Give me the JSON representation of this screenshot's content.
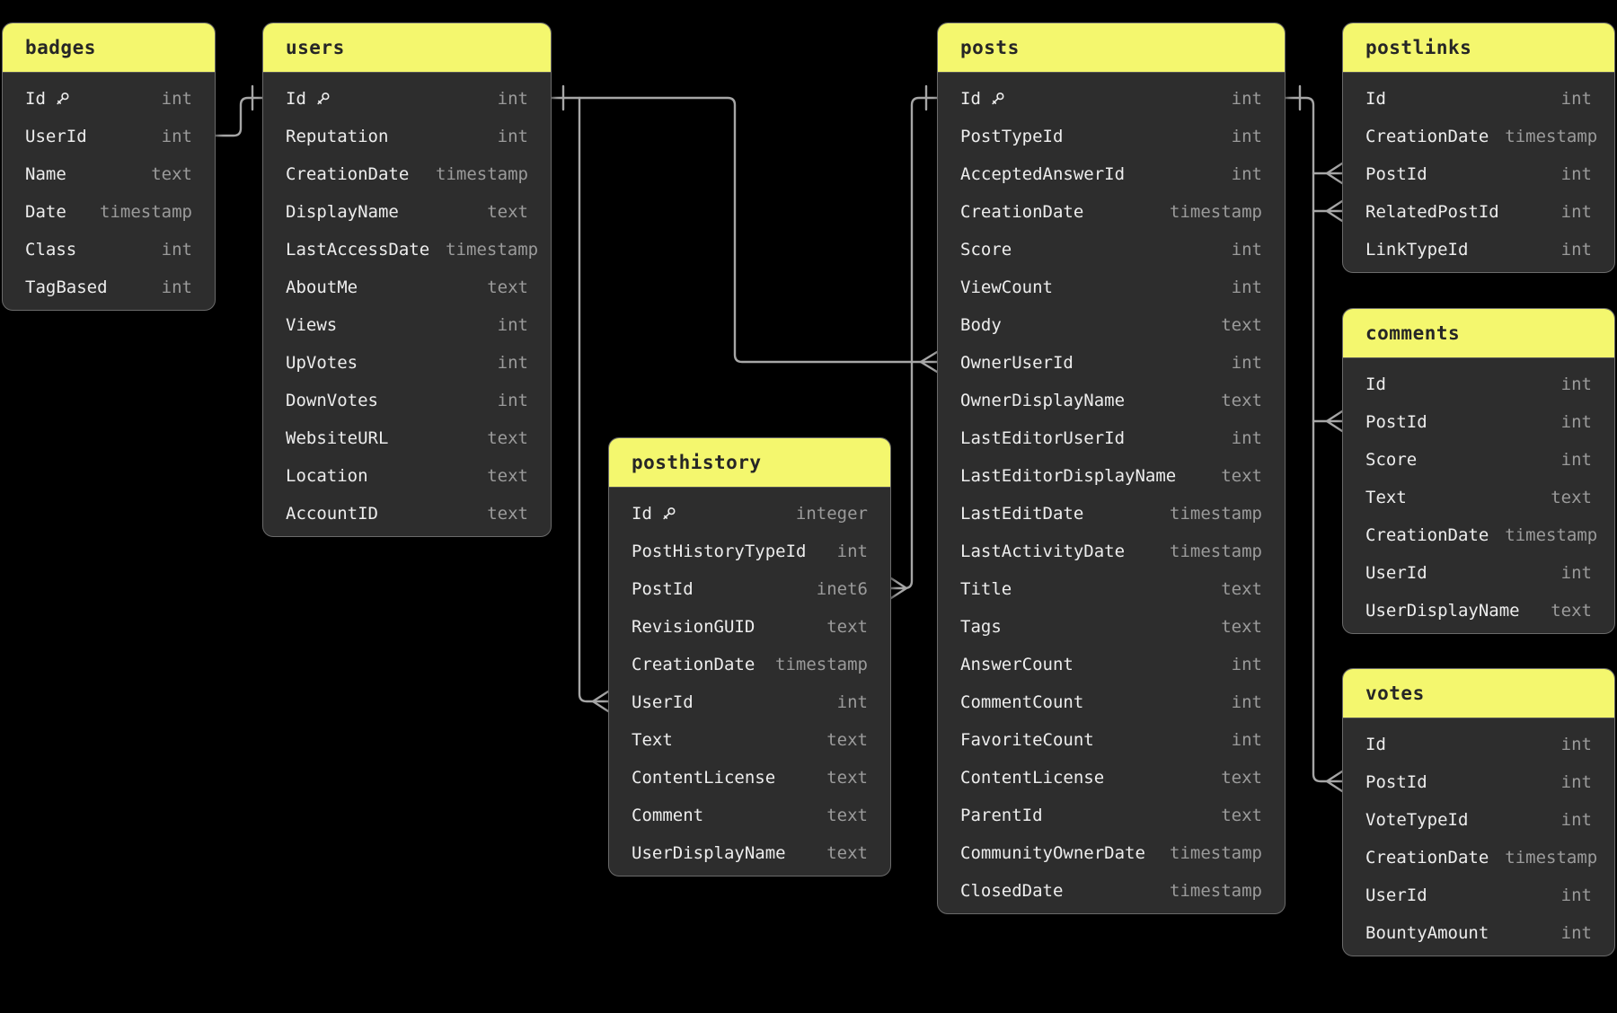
{
  "diagram": {
    "background_color": "#000000",
    "table_body_color": "#2d2d2d",
    "header_color": "#f4f76e",
    "header_text_color": "#262626",
    "field_text_color": "#ededed",
    "type_text_color": "#9b9b9b",
    "line_color": "#a6a6a6",
    "key_icon": "key-icon",
    "tables": [
      {
        "name": "badges",
        "fields": [
          {
            "name": "Id",
            "type": "int",
            "key": true
          },
          {
            "name": "UserId",
            "type": "int",
            "key": false
          },
          {
            "name": "Name",
            "type": "text",
            "key": false
          },
          {
            "name": "Date",
            "type": "timestamp",
            "key": false
          },
          {
            "name": "Class",
            "type": "int",
            "key": false
          },
          {
            "name": "TagBased",
            "type": "int",
            "key": false
          }
        ]
      },
      {
        "name": "users",
        "fields": [
          {
            "name": "Id",
            "type": "int",
            "key": true
          },
          {
            "name": "Reputation",
            "type": "int",
            "key": false
          },
          {
            "name": "CreationDate",
            "type": "timestamp",
            "key": false
          },
          {
            "name": "DisplayName",
            "type": "text",
            "key": false
          },
          {
            "name": "LastAccessDate",
            "type": "timestamp",
            "key": false
          },
          {
            "name": "AboutMe",
            "type": "text",
            "key": false
          },
          {
            "name": "Views",
            "type": "int",
            "key": false
          },
          {
            "name": "UpVotes",
            "type": "int",
            "key": false
          },
          {
            "name": "DownVotes",
            "type": "int",
            "key": false
          },
          {
            "name": "WebsiteURL",
            "type": "text",
            "key": false
          },
          {
            "name": "Location",
            "type": "text",
            "key": false
          },
          {
            "name": "AccountID",
            "type": "text",
            "key": false
          }
        ]
      },
      {
        "name": "posthistory",
        "fields": [
          {
            "name": "Id",
            "type": "integer",
            "key": true
          },
          {
            "name": "PostHistoryTypeId",
            "type": "int",
            "key": false
          },
          {
            "name": "PostId",
            "type": "inet6",
            "key": false
          },
          {
            "name": "RevisionGUID",
            "type": "text",
            "key": false
          },
          {
            "name": "CreationDate",
            "type": "timestamp",
            "key": false
          },
          {
            "name": "UserId",
            "type": "int",
            "key": false
          },
          {
            "name": "Text",
            "type": "text",
            "key": false
          },
          {
            "name": "ContentLicense",
            "type": "text",
            "key": false
          },
          {
            "name": "Comment",
            "type": "text",
            "key": false
          },
          {
            "name": "UserDisplayName",
            "type": "text",
            "key": false
          }
        ]
      },
      {
        "name": "posts",
        "fields": [
          {
            "name": "Id",
            "type": "int",
            "key": true
          },
          {
            "name": "PostTypeId",
            "type": "int",
            "key": false
          },
          {
            "name": "AcceptedAnswerId",
            "type": "int",
            "key": false
          },
          {
            "name": "CreationDate",
            "type": "timestamp",
            "key": false
          },
          {
            "name": "Score",
            "type": "int",
            "key": false
          },
          {
            "name": "ViewCount",
            "type": "int",
            "key": false
          },
          {
            "name": "Body",
            "type": "text",
            "key": false
          },
          {
            "name": "OwnerUserId",
            "type": "int",
            "key": false
          },
          {
            "name": "OwnerDisplayName",
            "type": "text",
            "key": false
          },
          {
            "name": "LastEditorUserId",
            "type": "int",
            "key": false
          },
          {
            "name": "LastEditorDisplayName",
            "type": "text",
            "key": false
          },
          {
            "name": "LastEditDate",
            "type": "timestamp",
            "key": false
          },
          {
            "name": "LastActivityDate",
            "type": "timestamp",
            "key": false
          },
          {
            "name": "Title",
            "type": "text",
            "key": false
          },
          {
            "name": "Tags",
            "type": "text",
            "key": false
          },
          {
            "name": "AnswerCount",
            "type": "int",
            "key": false
          },
          {
            "name": "CommentCount",
            "type": "int",
            "key": false
          },
          {
            "name": "FavoriteCount",
            "type": "int",
            "key": false
          },
          {
            "name": "ContentLicense",
            "type": "text",
            "key": false
          },
          {
            "name": "ParentId",
            "type": "text",
            "key": false
          },
          {
            "name": "CommunityOwnerDate",
            "type": "timestamp",
            "key": false
          },
          {
            "name": "ClosedDate",
            "type": "timestamp",
            "key": false
          }
        ]
      },
      {
        "name": "postlinks",
        "fields": [
          {
            "name": "Id",
            "type": "int",
            "key": false
          },
          {
            "name": "CreationDate",
            "type": "timestamp",
            "key": false
          },
          {
            "name": "PostId",
            "type": "int",
            "key": false
          },
          {
            "name": "RelatedPostId",
            "type": "int",
            "key": false
          },
          {
            "name": "LinkTypeId",
            "type": "int",
            "key": false
          }
        ]
      },
      {
        "name": "comments",
        "fields": [
          {
            "name": "Id",
            "type": "int",
            "key": false
          },
          {
            "name": "PostId",
            "type": "int",
            "key": false
          },
          {
            "name": "Score",
            "type": "int",
            "key": false
          },
          {
            "name": "Text",
            "type": "text",
            "key": false
          },
          {
            "name": "CreationDate",
            "type": "timestamp",
            "key": false
          },
          {
            "name": "UserId",
            "type": "int",
            "key": false
          },
          {
            "name": "UserDisplayName",
            "type": "text",
            "key": false
          }
        ]
      },
      {
        "name": "votes",
        "fields": [
          {
            "name": "Id",
            "type": "int",
            "key": false
          },
          {
            "name": "PostId",
            "type": "int",
            "key": false
          },
          {
            "name": "VoteTypeId",
            "type": "int",
            "key": false
          },
          {
            "name": "CreationDate",
            "type": "timestamp",
            "key": false
          },
          {
            "name": "UserId",
            "type": "int",
            "key": false
          },
          {
            "name": "BountyAmount",
            "type": "int",
            "key": false
          }
        ]
      }
    ],
    "relationships": [
      {
        "from": "users.Id",
        "to": "badges.UserId",
        "from_cardinality": "one",
        "to_cardinality": "many"
      },
      {
        "from": "users.Id",
        "to": "posts.OwnerUserId",
        "from_cardinality": "one",
        "to_cardinality": "many"
      },
      {
        "from": "users.Id",
        "to": "posthistory.UserId",
        "from_cardinality": "one",
        "to_cardinality": "many"
      },
      {
        "from": "posts.Id",
        "to": "posthistory.PostId",
        "from_cardinality": "one",
        "to_cardinality": "many"
      },
      {
        "from": "posts.Id",
        "to": "postlinks.PostId",
        "from_cardinality": "one",
        "to_cardinality": "many"
      },
      {
        "from": "posts.Id",
        "to": "postlinks.RelatedPostId",
        "from_cardinality": "one",
        "to_cardinality": "many"
      },
      {
        "from": "posts.Id",
        "to": "comments.PostId",
        "from_cardinality": "one",
        "to_cardinality": "many"
      },
      {
        "from": "posts.Id",
        "to": "votes.PostId",
        "from_cardinality": "one",
        "to_cardinality": "many"
      }
    ]
  }
}
